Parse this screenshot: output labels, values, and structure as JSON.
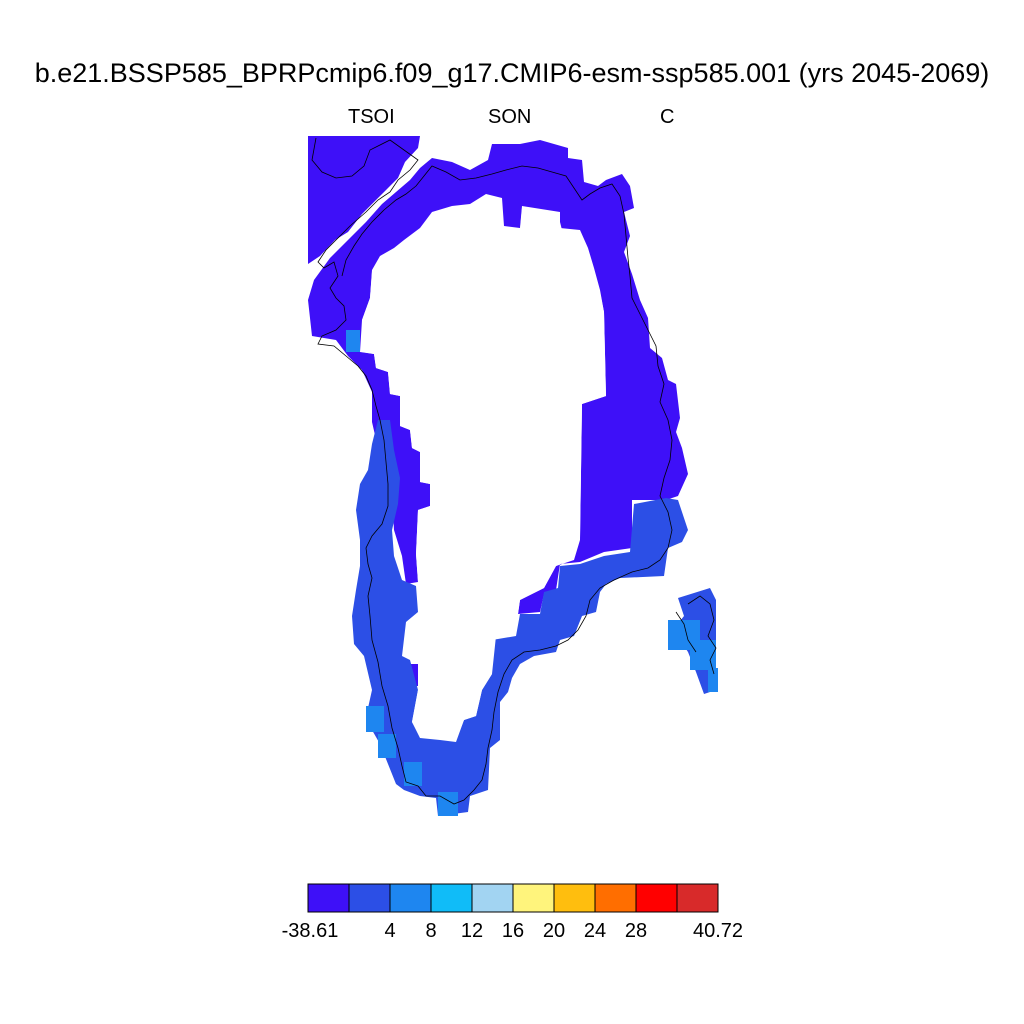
{
  "title": "b.e21.BSSP585_BPRPcmip6.f09_g17.CMIP6-esm-ssp585.001 (yrs 2045-2069)",
  "subtitles": {
    "variable": "TSOI",
    "season": "SON",
    "units": "C"
  },
  "colorbar": {
    "colors": [
      "#3e10f8",
      "#2c4fe6",
      "#1e86f0",
      "#10bcf8",
      "#a2d4f2",
      "#fff47c",
      "#ffbe0e",
      "#ff6e00",
      "#ff0000",
      "#d82a2a"
    ],
    "tick_labels": [
      "-38.61",
      "4",
      "8",
      "12",
      "16",
      "20",
      "24",
      "28",
      "40.72"
    ],
    "min": -38.61,
    "max": 40.72
  },
  "map": {
    "region": "Greenland",
    "ocean_color": "#ffffff",
    "coastline_color": "#000000",
    "missing_color": "#ffffff"
  }
}
